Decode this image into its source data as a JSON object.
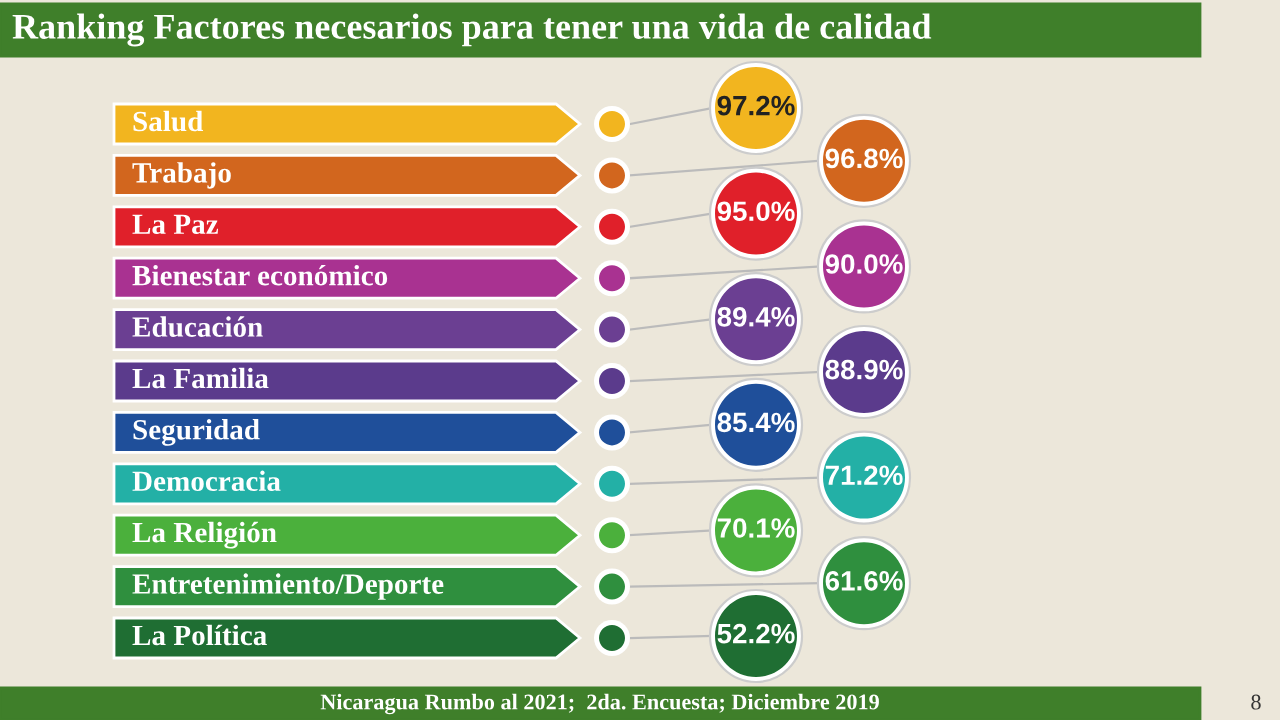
{
  "chart_data": {
    "type": "other",
    "title": "Ranking Factores necesarios para tener una vida de calidad",
    "categories": [
      "Salud",
      "Trabajo",
      "La Paz",
      "Bienestar económico",
      "Educación",
      "La Familia",
      "Seguridad",
      "Democracia",
      "La Religión",
      "Entretenimiento/Deporte",
      "La Política"
    ],
    "values": [
      97.2,
      96.8,
      95.0,
      90.0,
      89.4,
      88.9,
      85.4,
      71.2,
      70.1,
      61.6,
      52.2
    ],
    "value_labels": [
      "97.2%",
      "96.8%",
      "95.0%",
      "90.0%",
      "89.4%",
      "88.9%",
      "85.4%",
      "71.2%",
      "70.1%",
      "61.6%",
      "52.2%"
    ],
    "colors": [
      "#f2b51f",
      "#d2661e",
      "#e0202a",
      "#a93291",
      "#6b3f92",
      "#5b3b8c",
      "#1f4f9a",
      "#23b0a6",
      "#4bb03c",
      "#2f8f3e",
      "#1f6e33"
    ],
    "annotations": [
      "Nicaragua Rumbo al 2021;  2da. Encuesta; Diciembre 2019",
      "8"
    ]
  }
}
